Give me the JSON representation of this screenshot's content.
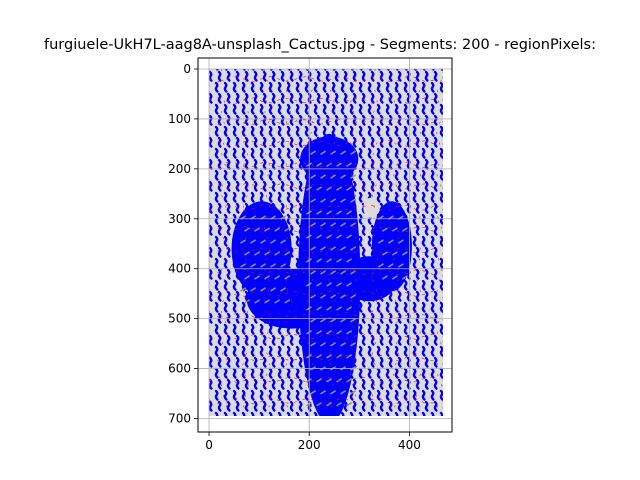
{
  "chart_data": {
    "type": "image",
    "title": "furgiuele-UkH7L-aag8A-unsplash_Cactus.jpg - Segments: 200 - regionPixels:",
    "image_extent": {
      "width": 467,
      "height": 695
    },
    "xlim": [
      -22,
      485
    ],
    "ylim": [
      727,
      -22
    ],
    "x_ticks": [
      0,
      200,
      400
    ],
    "y_ticks": [
      0,
      100,
      200,
      300,
      400,
      500,
      600,
      700
    ],
    "grid": true,
    "y_axis_inverted": true,
    "colors": {
      "stroke": "#0000ff",
      "boundary": "#ff0000",
      "background": "#dcdcdc",
      "cactus_shade": "#8c8c8c",
      "grid": "#b0b0b0"
    }
  }
}
